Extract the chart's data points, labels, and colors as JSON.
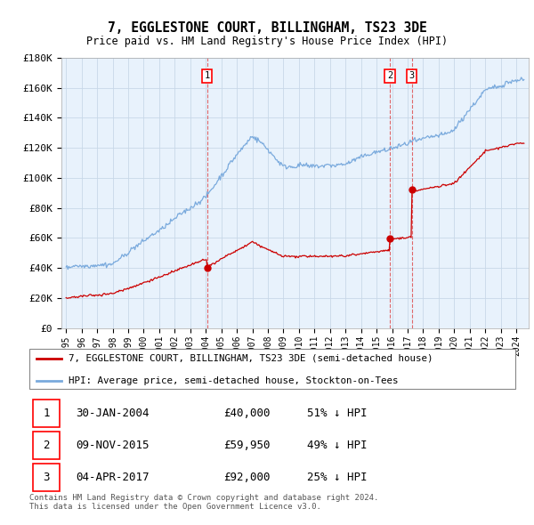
{
  "title": "7, EGGLESTONE COURT, BILLINGHAM, TS23 3DE",
  "subtitle": "Price paid vs. HM Land Registry's House Price Index (HPI)",
  "ylim": [
    0,
    180000
  ],
  "yticks": [
    0,
    20000,
    40000,
    60000,
    80000,
    100000,
    120000,
    140000,
    160000,
    180000
  ],
  "ytick_labels": [
    "£0",
    "£20K",
    "£40K",
    "£60K",
    "£80K",
    "£100K",
    "£120K",
    "£140K",
    "£160K",
    "£180K"
  ],
  "xlim_start": 1994.7,
  "xlim_end": 2024.8,
  "sale_dates": [
    2004.08,
    2015.86,
    2017.27
  ],
  "sale_prices": [
    40000,
    59950,
    92000
  ],
  "sale_labels": [
    "1",
    "2",
    "3"
  ],
  "legend_property": "7, EGGLESTONE COURT, BILLINGHAM, TS23 3DE (semi-detached house)",
  "legend_hpi": "HPI: Average price, semi-detached house, Stockton-on-Tees",
  "annotation_rows": [
    {
      "num": "1",
      "date": "30-JAN-2004",
      "price": "£40,000",
      "pct": "51% ↓ HPI"
    },
    {
      "num": "2",
      "date": "09-NOV-2015",
      "price": "£59,950",
      "pct": "49% ↓ HPI"
    },
    {
      "num": "3",
      "date": "04-APR-2017",
      "price": "£92,000",
      "pct": "25% ↓ HPI"
    }
  ],
  "footer": "Contains HM Land Registry data © Crown copyright and database right 2024.\nThis data is licensed under the Open Government Licence v3.0.",
  "red_color": "#cc0000",
  "blue_color": "#7aaadd",
  "bg_chart": "#e8f2fc",
  "grid_color": "#c8d8e8",
  "spine_color": "#aaaaaa"
}
